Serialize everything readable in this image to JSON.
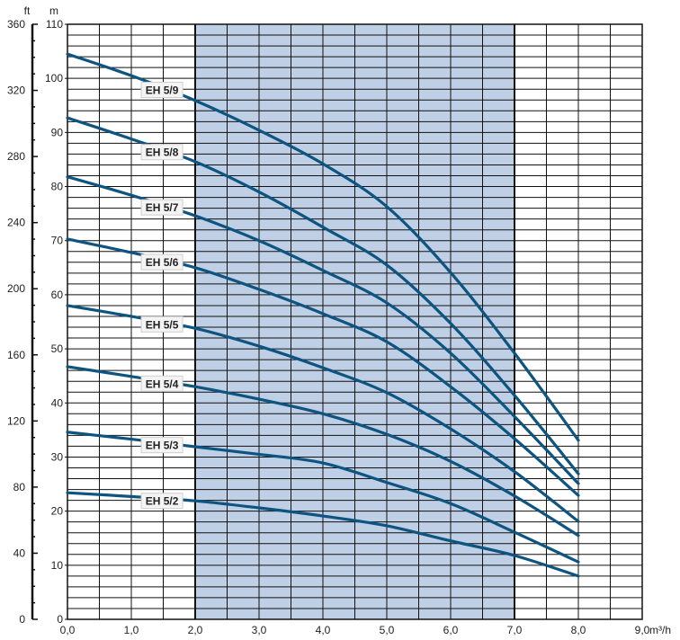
{
  "chart_data": {
    "type": "line",
    "x_unit_label": "m³/h",
    "y_unit_label": "m",
    "y2_unit_label": "ft",
    "xlim": [
      0,
      9
    ],
    "ylim": [
      0,
      110
    ],
    "y2lim": [
      0,
      360
    ],
    "x_ticks": [
      "0,0",
      "1,0",
      "2,0",
      "3,0",
      "4,0",
      "5,0",
      "6,0",
      "7,0",
      "8,0",
      "9,0"
    ],
    "y_ticks": [
      "0",
      "10",
      "20",
      "30",
      "40",
      "50",
      "60",
      "70",
      "80",
      "90",
      "100",
      "110"
    ],
    "y2_ticks": [
      "0",
      "40",
      "80",
      "120",
      "160",
      "200",
      "240",
      "280",
      "320",
      "360"
    ],
    "grid": true,
    "shaded_range_x": [
      2,
      7
    ],
    "colors": {
      "curve": "#0d5580",
      "shade": "#bfcfe5",
      "grid": "#111111"
    },
    "x": [
      0,
      1,
      2,
      3,
      4,
      5,
      6,
      7,
      8
    ],
    "series": [
      {
        "name": "EH 5/9",
        "values": [
          104.5,
          100.5,
          95.9,
          90.4,
          84.2,
          76.3,
          64.1,
          49.2,
          33.1
        ]
      },
      {
        "name": "EH 5/8",
        "values": [
          92.7,
          88.8,
          84.6,
          79.0,
          72.5,
          65.5,
          54.7,
          41.4,
          26.9
        ]
      },
      {
        "name": "EH 5/7",
        "values": [
          81.8,
          78.4,
          74.6,
          70.0,
          64.5,
          58.5,
          49.2,
          37.5,
          25.1
        ]
      },
      {
        "name": "EH 5/6",
        "values": [
          70.3,
          67.8,
          65.0,
          61.0,
          56.5,
          51.3,
          43.0,
          33.4,
          22.9
        ]
      },
      {
        "name": "EH 5/5",
        "values": [
          58.0,
          56.0,
          53.8,
          50.5,
          46.5,
          41.9,
          35.2,
          27.3,
          18.1
        ]
      },
      {
        "name": "EH 5/4",
        "values": [
          46.7,
          44.9,
          43.0,
          40.7,
          38.0,
          34.2,
          29.2,
          22.8,
          15.5
        ]
      },
      {
        "name": "EH 5/3",
        "values": [
          34.6,
          33.3,
          31.9,
          30.5,
          28.9,
          25.3,
          21.4,
          16.1,
          10.6
        ]
      },
      {
        "name": "EH 5/2",
        "values": [
          23.4,
          22.7,
          21.9,
          20.6,
          19.1,
          17.3,
          14.5,
          11.8,
          8.0
        ]
      }
    ]
  }
}
